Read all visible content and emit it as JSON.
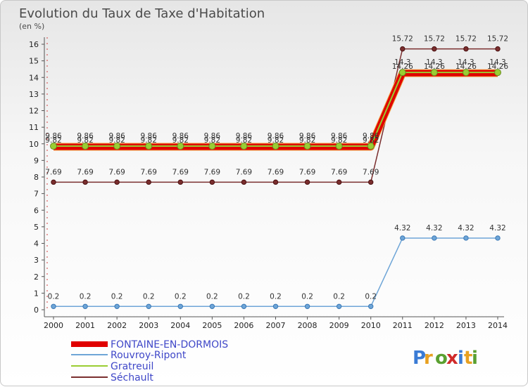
{
  "chart_data": {
    "type": "line",
    "title": "Evolution du Taux de Taxe d'Habitation",
    "subtitle": "(en %)",
    "x": [
      "2000",
      "2001",
      "2002",
      "2003",
      "2004",
      "2005",
      "2006",
      "2007",
      "2008",
      "2009",
      "2010",
      "2011",
      "2012",
      "2013",
      "2014"
    ],
    "ylim": [
      0,
      16
    ],
    "yticks": [
      "0",
      "1",
      "2",
      "3",
      "4",
      "5",
      "6",
      "7",
      "8",
      "9",
      "10",
      "11",
      "12",
      "13",
      "14",
      "15",
      "16"
    ],
    "grid": false,
    "legend_position": "bottom-left",
    "series": [
      {
        "name": "FONTAINE-EN-DORMOIS",
        "color": "#e00000",
        "values": [
          9.82,
          9.82,
          9.82,
          9.82,
          9.82,
          9.82,
          9.82,
          9.82,
          9.82,
          9.82,
          9.82,
          14.26,
          14.26,
          14.26,
          14.26
        ],
        "labels": [
          "9.82",
          "9.82",
          "9.82",
          "9.82",
          "9.82",
          "9.82",
          "9.82",
          "9.82",
          "9.82",
          "9.82",
          "9.82",
          "14.26",
          "14.26",
          "14.26",
          "14.26"
        ]
      },
      {
        "name": "Rouvroy-Ripont",
        "color": "#6ea5d7",
        "values": [
          0.2,
          0.2,
          0.2,
          0.2,
          0.2,
          0.2,
          0.2,
          0.2,
          0.2,
          0.2,
          0.2,
          4.32,
          4.32,
          4.32,
          4.32
        ],
        "labels": [
          "0.2",
          "0.2",
          "0.2",
          "0.2",
          "0.2",
          "0.2",
          "0.2",
          "0.2",
          "0.2",
          "0.2",
          "0.2",
          "4.32",
          "4.32",
          "4.32",
          "4.32"
        ]
      },
      {
        "name": "Gratreuil",
        "color": "#9acd32",
        "values": [
          9.86,
          9.86,
          9.86,
          9.86,
          9.86,
          9.86,
          9.86,
          9.86,
          9.86,
          9.86,
          9.86,
          14.3,
          14.3,
          14.3,
          14.3
        ],
        "labels": [
          "9.86",
          "9.86",
          "9.86",
          "9.86",
          "9.86",
          "9.86",
          "9.86",
          "9.86",
          "9.86",
          "9.86",
          "9.86",
          "14.3",
          "14.3",
          "14.3",
          "14.3"
        ]
      },
      {
        "name": "Séchault",
        "color": "#7a2e2e",
        "values": [
          7.69,
          7.69,
          7.69,
          7.69,
          7.69,
          7.69,
          7.69,
          7.69,
          7.69,
          7.69,
          7.69,
          15.72,
          15.72,
          15.72,
          15.72
        ],
        "labels": [
          "7.69",
          "7.69",
          "7.69",
          "7.69",
          "7.69",
          "7.69",
          "7.69",
          "7.69",
          "7.69",
          "7.69",
          "7.69",
          "15.72",
          "15.72",
          "15.72",
          "15.72"
        ]
      }
    ]
  },
  "logo": {
    "text": "Proxiti"
  }
}
